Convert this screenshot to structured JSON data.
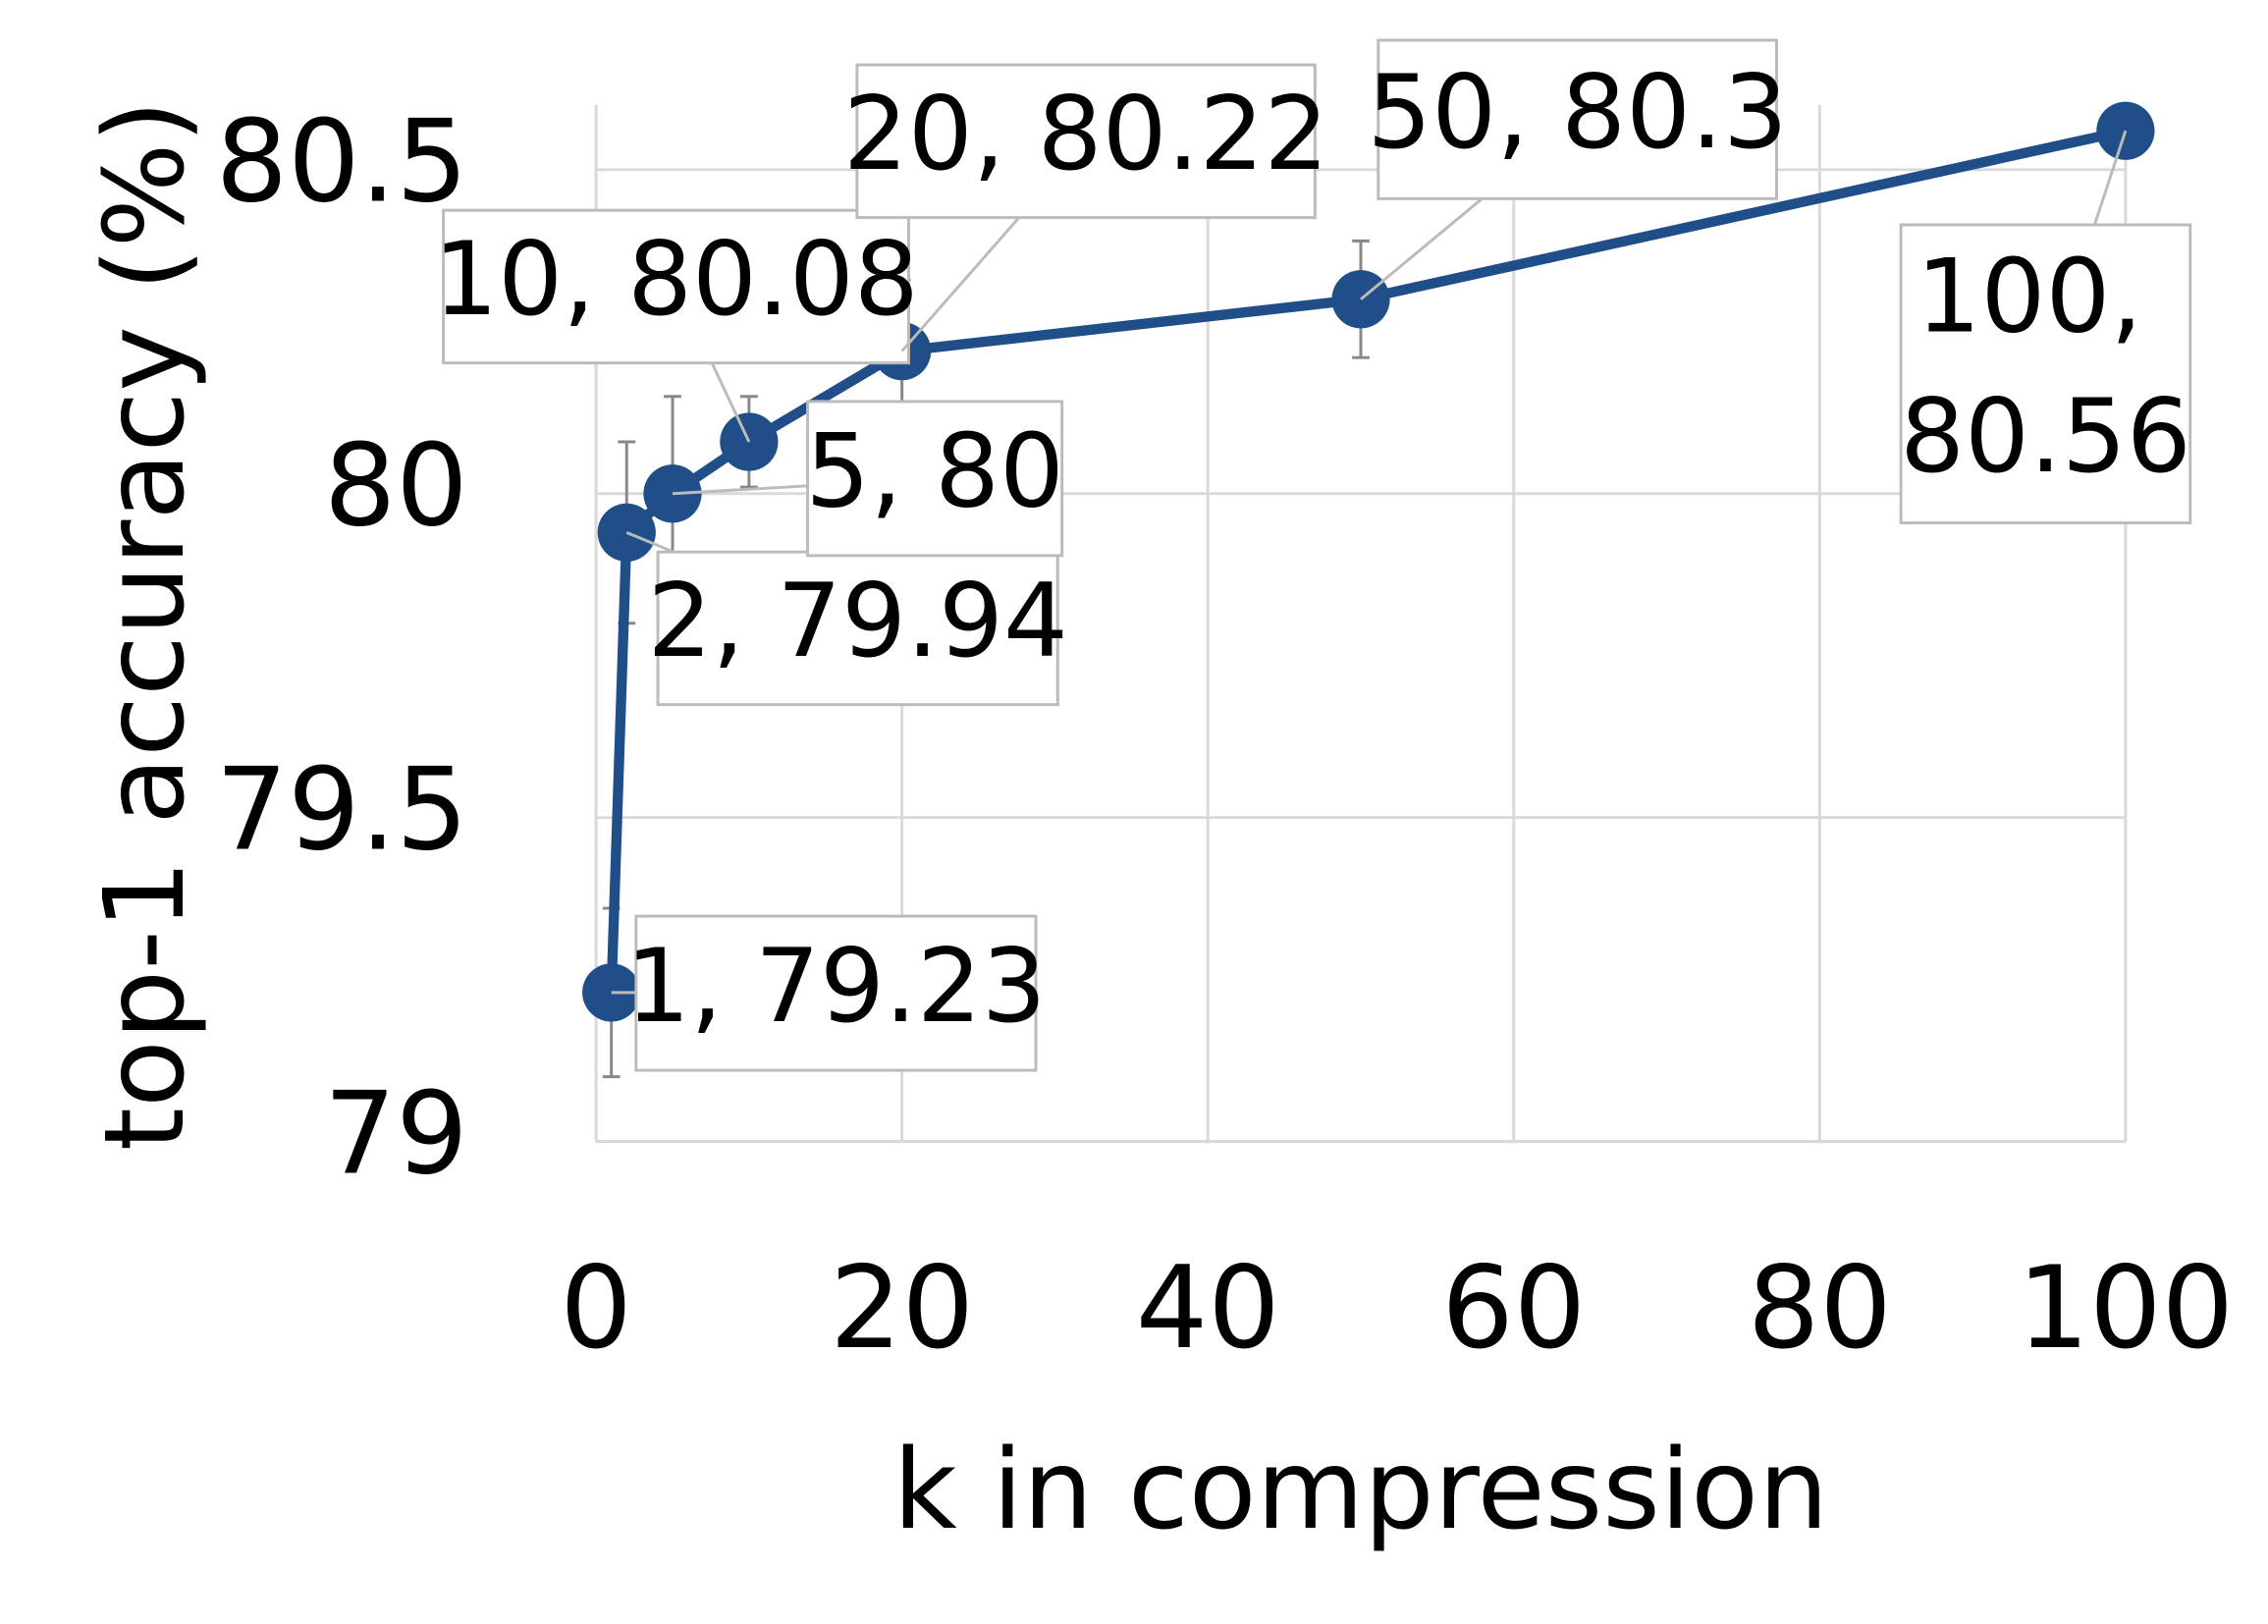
{
  "chart_data": {
    "type": "line",
    "y_label": "top-1 accuracy (%)",
    "x_label": "k in compression",
    "x": [
      1,
      2,
      5,
      10,
      20,
      50,
      100
    ],
    "series": [
      {
        "color": "#1f4e89",
        "values": [
          79.23,
          79.94,
          80,
          80.08,
          80.22,
          80.3,
          80.56
        ],
        "errors": [
          0.13,
          0.14,
          0.15,
          0.07,
          0.11,
          0.09,
          0.02
        ],
        "value_labels": [
          "1, 79.23",
          "2, 79.94",
          "5, 80",
          "10, 80.08",
          "20, 80.22",
          "50, 80.3",
          "100, 80.56"
        ]
      }
    ],
    "xlim": [
      0,
      100
    ],
    "xticks": [
      0,
      20,
      40,
      60,
      80,
      100
    ],
    "ylim": [
      79,
      80.6
    ],
    "yticks": [
      79,
      79.5,
      80,
      80.5
    ],
    "grid": true
  }
}
